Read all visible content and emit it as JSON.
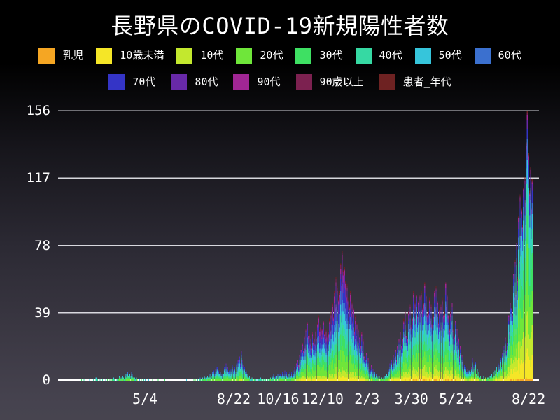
{
  "chart_data": {
    "type": "bar",
    "stacked": true,
    "title": "長野県のCOVID-19新規陽性者数",
    "ylim": [
      0,
      156
    ],
    "grid": true,
    "legend_position": "top",
    "y_ticks": [
      {
        "label": "156",
        "value": 156
      },
      {
        "label": "117",
        "value": 117
      },
      {
        "label": "78",
        "value": 78
      },
      {
        "label": "39",
        "value": 39
      },
      {
        "label": "0",
        "value": 0
      }
    ],
    "x_ticks": [
      {
        "label": "5/4",
        "day": 105
      },
      {
        "label": "8/22",
        "day": 215
      },
      {
        "label": "10/16",
        "day": 270
      },
      {
        "label": "12/10",
        "day": 325
      },
      {
        "label": "2/3",
        "day": 380
      },
      {
        "label": "3/30",
        "day": 435
      },
      {
        "label": "5/24",
        "day": 490
      },
      {
        "label": "8/22",
        "day": 580
      }
    ],
    "series": [
      {
        "label": "乳児",
        "color": "#f5a623"
      },
      {
        "label": "10歳未満",
        "color": "#f5e627"
      },
      {
        "label": "10代",
        "color": "#c3e82e"
      },
      {
        "label": "20代",
        "color": "#6fe63a"
      },
      {
        "label": "30代",
        "color": "#3ee063"
      },
      {
        "label": "40代",
        "color": "#36d9a3"
      },
      {
        "label": "50代",
        "color": "#36c5db"
      },
      {
        "label": "60代",
        "color": "#3b70cf"
      },
      {
        "label": "70代",
        "color": "#3434c6"
      },
      {
        "label": "80代",
        "color": "#6829a8"
      },
      {
        "label": "90代",
        "color": "#a02694"
      },
      {
        "label": "90歳以上",
        "color": "#7c2150"
      },
      {
        "label": "患者_年代",
        "color": "#6e2222"
      }
    ],
    "age_share_profiles": [
      {
        "from_day": 0,
        "to_day": 259,
        "shares": [
          0.5,
          2.5,
          4,
          15,
          16,
          17,
          16,
          11,
          8,
          5,
          2.5,
          1.5,
          1
        ]
      },
      {
        "from_day": 260,
        "to_day": 398,
        "shares": [
          0.5,
          3.5,
          6,
          14,
          13,
          13,
          12,
          11,
          10,
          8,
          5,
          2.5,
          1.5
        ]
      },
      {
        "from_day": 399,
        "to_day": 511,
        "shares": [
          1,
          5,
          8,
          15,
          14,
          14,
          13,
          10,
          8,
          6,
          3.5,
          1.5,
          1
        ]
      },
      {
        "from_day": 512,
        "to_day": 584,
        "shares": [
          1,
          9,
          13,
          19,
          16,
          14,
          11,
          6,
          5,
          3,
          1.5,
          0.7,
          0.8
        ]
      }
    ],
    "daily_totals": [
      0,
      0,
      0,
      0,
      0,
      0,
      0,
      0,
      0,
      0,
      0,
      0,
      0,
      0,
      0,
      0,
      0,
      0,
      0,
      0,
      0,
      0,
      0,
      0,
      0,
      0,
      1,
      0,
      0,
      1,
      0,
      0,
      0,
      1,
      0,
      0,
      1,
      0,
      0,
      0,
      0,
      1,
      0,
      0,
      2,
      0,
      1,
      0,
      0,
      1,
      0,
      0,
      1,
      0,
      0,
      0,
      1,
      0,
      1,
      2,
      0,
      1,
      0,
      0,
      1,
      0,
      2,
      1,
      0,
      0,
      1,
      2,
      1,
      3,
      2,
      1,
      2,
      3,
      2,
      1,
      3,
      4,
      2,
      5,
      3,
      6,
      4,
      3,
      5,
      4,
      2,
      3,
      2,
      1,
      2,
      1,
      0,
      1,
      1,
      0,
      1,
      0,
      0,
      1,
      0,
      1,
      0,
      0,
      0,
      1,
      0,
      0,
      0,
      0,
      1,
      0,
      0,
      0,
      0,
      0,
      0,
      1,
      0,
      0,
      0,
      0,
      0,
      0,
      0,
      1,
      0,
      0,
      0,
      0,
      0,
      0,
      0,
      0,
      0,
      0,
      0,
      0,
      0,
      1,
      0,
      0,
      0,
      0,
      0,
      1,
      0,
      0,
      0,
      0,
      0,
      0,
      1,
      0,
      0,
      0,
      0,
      0,
      0,
      1,
      0,
      1,
      0,
      1,
      0,
      2,
      1,
      0,
      1,
      2,
      1,
      1,
      2,
      1,
      3,
      2,
      1,
      2,
      3,
      2,
      4,
      2,
      4,
      3,
      5,
      3,
      6,
      4,
      7,
      5,
      8,
      5,
      6,
      4,
      5,
      3,
      4,
      6,
      4,
      8,
      5,
      10,
      6,
      8,
      5,
      6,
      4,
      7,
      5,
      9,
      6,
      6,
      8,
      5,
      10,
      7,
      12,
      9,
      14,
      10,
      17,
      12,
      9,
      7,
      8,
      5,
      6,
      4,
      3,
      2,
      3,
      1,
      2,
      1,
      2,
      1,
      1,
      2,
      1,
      1,
      0,
      1,
      1,
      0,
      2,
      1,
      0,
      1,
      1,
      0,
      1,
      0,
      1,
      1,
      0,
      1,
      2,
      1,
      3,
      2,
      4,
      2,
      3,
      5,
      3,
      4,
      2,
      3,
      4,
      6,
      3,
      5,
      4,
      3,
      6,
      4,
      5,
      3,
      4,
      2,
      5,
      3,
      5,
      3,
      6,
      4,
      8,
      6,
      10,
      7,
      12,
      9,
      15,
      11,
      18,
      14,
      22,
      17,
      26,
      20,
      30,
      24,
      34,
      26,
      28,
      22,
      25,
      20,
      28,
      23,
      26,
      21,
      30,
      24,
      34,
      27,
      38,
      30,
      33,
      26,
      30,
      24,
      35,
      28,
      25,
      30,
      26,
      33,
      28,
      36,
      30,
      40,
      34,
      45,
      38,
      52,
      44,
      60,
      45,
      55,
      48,
      62,
      52,
      68,
      58,
      75,
      64,
      78,
      66,
      58,
      50,
      56,
      48,
      58,
      44,
      52,
      40,
      46,
      35,
      42,
      30,
      38,
      26,
      34,
      22,
      30,
      25,
      32,
      20,
      28,
      17,
      24,
      14,
      20,
      12,
      16,
      9,
      13,
      7,
      10,
      6,
      9,
      4,
      7,
      3,
      5,
      2,
      4,
      2,
      3,
      1,
      3,
      1,
      2,
      2,
      1,
      2,
      1,
      3,
      2,
      4,
      3,
      5,
      7,
      10,
      6,
      12,
      8,
      15,
      10,
      13,
      18,
      12,
      20,
      15,
      24,
      17,
      28,
      20,
      32,
      24,
      36,
      27,
      40,
      26,
      34,
      24,
      40,
      30,
      44,
      32,
      48,
      36,
      52,
      38,
      46,
      33,
      50,
      38,
      46,
      36,
      50,
      40,
      52,
      42,
      55,
      45,
      57,
      44,
      50,
      38,
      46,
      40,
      48,
      36,
      44,
      33,
      46,
      38,
      52,
      42,
      55,
      40,
      46,
      34,
      42,
      36,
      44,
      32,
      48,
      38,
      52,
      40,
      57,
      44,
      50,
      38,
      44,
      30,
      40,
      34,
      45,
      30,
      40,
      26,
      35,
      22,
      30,
      18,
      25,
      14,
      20,
      10,
      15,
      11,
      7,
      9,
      6,
      8,
      5,
      7,
      4,
      6,
      3,
      5,
      8,
      13,
      6,
      9,
      5,
      11,
      4,
      7,
      3,
      5,
      2,
      3,
      1,
      2,
      1,
      3,
      1,
      2,
      1,
      1,
      2,
      2,
      1,
      3,
      2,
      4,
      2,
      5,
      3,
      6,
      4,
      8,
      5,
      10,
      7,
      9,
      13,
      8,
      16,
      11,
      20,
      14,
      25,
      17,
      30,
      22,
      38,
      28,
      45,
      42,
      55,
      38,
      62,
      48,
      70,
      52,
      80,
      60,
      95,
      70,
      108,
      85,
      100,
      90,
      112,
      95,
      118,
      105,
      138,
      156,
      120,
      132,
      110,
      124,
      100,
      117
    ]
  }
}
